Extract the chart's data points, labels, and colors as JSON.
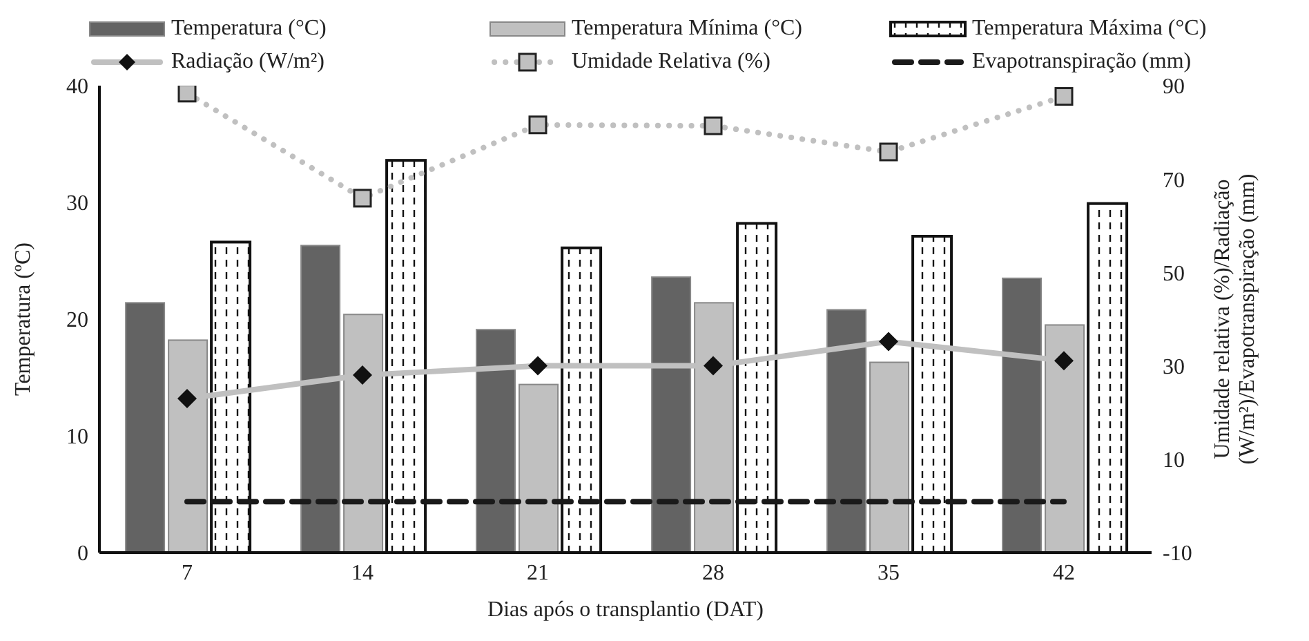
{
  "chart_data": {
    "type": "bar",
    "xlabel": "Dias após o transplantio (DAT)",
    "ylabel": "Temperatura (ºC)",
    "y2label": "Umidade relativa  (%)/Radiação\n(W/m²)/Evapotranspiração (mm)",
    "categories": [
      "7",
      "14",
      "21",
      "28",
      "35",
      "42"
    ],
    "ylim": [
      0,
      40
    ],
    "yticks": [
      0,
      10,
      20,
      30,
      40
    ],
    "y2lim": [
      -10,
      90
    ],
    "y2ticks": [
      -10,
      10,
      30,
      50,
      70,
      90
    ],
    "grid": false,
    "legend": "top",
    "series": [
      {
        "name": "Temperatura (°C)",
        "color": "#636363",
        "values": [
          21.4,
          26.3,
          19.1,
          23.6,
          20.8,
          23.5
        ]
      },
      {
        "name": "Temperatura Mínima (°C)",
        "color": "#c0c0c0",
        "values": [
          18.2,
          20.4,
          14.4,
          21.4,
          16.3,
          19.5
        ]
      },
      {
        "name": "Temperatura Máxima (°C)",
        "color": "#111111",
        "values": [
          26.6,
          33.6,
          26.1,
          28.2,
          27.1,
          29.9
        ]
      },
      {
        "name": "Radiação (W/m²)",
        "type": "line",
        "axis": "y2",
        "color": "#c0c0c0",
        "marker": "diamond",
        "line_style": "solid",
        "values": [
          23.0,
          28.0,
          30.0,
          30.0,
          35.2,
          31.1
        ]
      },
      {
        "name": "Umidade Relativa (%)",
        "type": "line",
        "axis": "y2",
        "color": "#c0c0c0",
        "marker": "square",
        "line_style": "dotted",
        "values": [
          88.4,
          65.9,
          81.6,
          81.4,
          75.8,
          87.7
        ]
      },
      {
        "name": "Evapotranspiração (mm)",
        "type": "line",
        "axis": "y2",
        "color": "#1a1a1a",
        "marker": "none",
        "line_style": "dashed",
        "values": [
          0.9,
          0.9,
          0.9,
          0.9,
          0.9,
          0.9
        ]
      }
    ]
  }
}
